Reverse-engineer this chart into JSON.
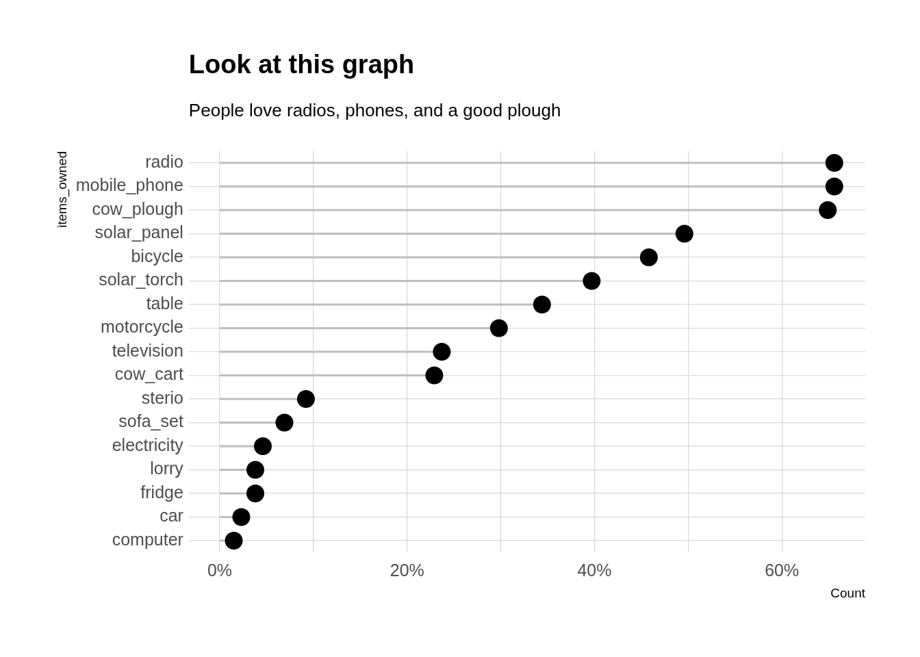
{
  "chart_data": {
    "type": "lollipop",
    "orientation": "horizontal",
    "title": "Look at this graph",
    "subtitle": "People love radios, phones, and a good plough",
    "xlabel": "Count",
    "ylabel": "items_owned",
    "categories": [
      "radio",
      "mobile_phone",
      "cow_plough",
      "solar_panel",
      "bicycle",
      "solar_torch",
      "table",
      "motorcycle",
      "television",
      "cow_cart",
      "sterio",
      "sofa_set",
      "electricity",
      "lorry",
      "fridge",
      "car",
      "computer"
    ],
    "values": [
      65.6,
      65.6,
      64.9,
      49.6,
      45.8,
      39.7,
      34.4,
      29.8,
      23.7,
      22.9,
      9.2,
      6.9,
      4.6,
      3.8,
      3.8,
      2.3,
      1.5
    ],
    "color": "#000000",
    "marker": "circle",
    "xlim": [
      -3.3,
      68.9
    ],
    "xticks": [
      {
        "value": 0,
        "label": "0%"
      },
      {
        "value": 10,
        "label": null
      },
      {
        "value": 20,
        "label": "20%"
      },
      {
        "value": 30,
        "label": null
      },
      {
        "value": 40,
        "label": "40%"
      },
      {
        "value": 50,
        "label": null
      },
      {
        "value": 60,
        "label": "60%"
      }
    ],
    "grid": true
  }
}
